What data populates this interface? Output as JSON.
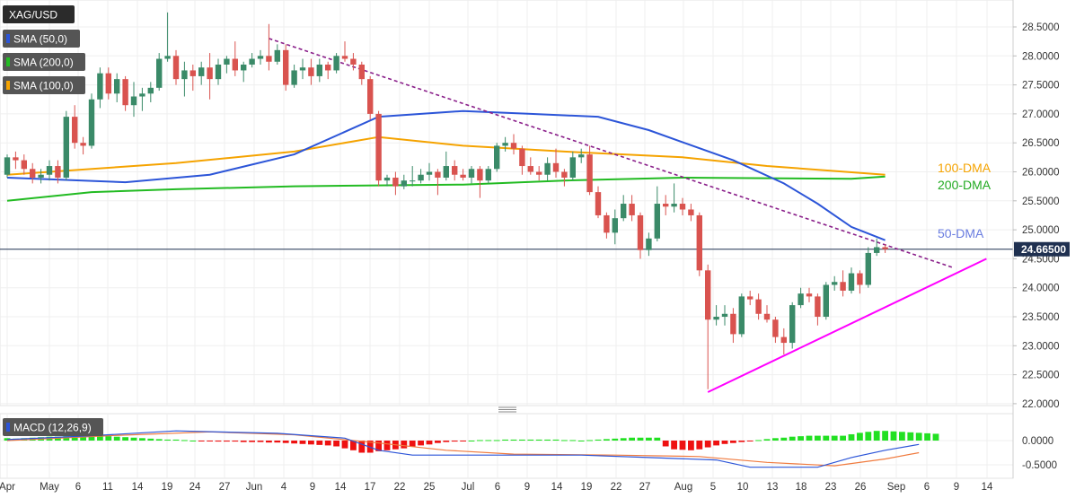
{
  "chart_data": [
    {
      "type": "candlestick",
      "symbol_label": "XAG/USD",
      "indicators": [
        {
          "label": "SMA (50,0)",
          "color": "#2c55d8",
          "end_label": "50-DMA"
        },
        {
          "label": "SMA (200,0)",
          "color": "#22bb22",
          "end_label": "200-DMA"
        },
        {
          "label": "SMA (100,0)",
          "color": "#f5a300",
          "end_label": "100-DMA"
        }
      ],
      "last_price_label": "24.66500",
      "last_price": 24.665,
      "ylim": [
        22.0,
        28.75
      ],
      "y_ticks": [
        "22.0000",
        "22.5000",
        "23.0000",
        "23.5000",
        "24.0000",
        "24.5000",
        "25.0000",
        "25.5000",
        "26.0000",
        "26.5000",
        "27.0000",
        "27.5000",
        "28.0000",
        "28.5000"
      ],
      "x_ticks": [
        "Apr",
        "May",
        "6",
        "11",
        "14",
        "19",
        "24",
        "27",
        "Jun",
        "4",
        "9",
        "14",
        "17",
        "22",
        "25",
        "Jul",
        "6",
        "9",
        "14",
        "19",
        "22",
        "27",
        "Aug",
        "5",
        "10",
        "13",
        "18",
        "23",
        "26",
        "Sep",
        "6",
        "9",
        "14"
      ],
      "candles": [
        [
          25.95,
          26.25,
          26.3,
          25.9
        ],
        [
          26.25,
          26.2,
          26.35,
          26.05
        ],
        [
          26.2,
          26.05,
          26.3,
          25.95
        ],
        [
          26.05,
          25.9,
          26.15,
          25.8
        ],
        [
          25.9,
          25.95,
          26.05,
          25.8
        ],
        [
          25.95,
          26.1,
          26.2,
          25.85
        ],
        [
          26.1,
          25.9,
          26.2,
          25.8
        ],
        [
          25.9,
          26.95,
          27.05,
          25.85
        ],
        [
          26.95,
          26.5,
          27.15,
          26.4
        ],
        [
          26.5,
          26.45,
          26.6,
          26.3
        ],
        [
          26.45,
          27.25,
          27.35,
          26.4
        ],
        [
          27.25,
          27.7,
          27.8,
          27.1
        ],
        [
          27.7,
          27.35,
          27.8,
          27.25
        ],
        [
          27.35,
          27.6,
          27.7,
          27.2
        ],
        [
          27.6,
          27.15,
          27.65,
          27.05
        ],
        [
          27.15,
          27.3,
          27.55,
          26.95
        ],
        [
          27.3,
          27.35,
          27.45,
          27.05
        ],
        [
          27.35,
          27.45,
          27.55,
          27.2
        ],
        [
          27.45,
          27.95,
          28.05,
          27.4
        ],
        [
          27.95,
          28.0,
          28.75,
          27.9
        ],
        [
          28.0,
          27.6,
          28.1,
          27.5
        ],
        [
          27.6,
          27.75,
          27.9,
          27.3
        ],
        [
          27.75,
          27.65,
          27.85,
          27.4
        ],
        [
          27.65,
          27.8,
          27.9,
          27.5
        ],
        [
          27.8,
          27.6,
          28.05,
          27.25
        ],
        [
          27.6,
          27.85,
          27.95,
          27.5
        ],
        [
          27.85,
          27.95,
          28.0,
          27.7
        ],
        [
          27.95,
          27.75,
          28.25,
          27.65
        ],
        [
          27.75,
          27.85,
          27.9,
          27.55
        ],
        [
          27.85,
          27.95,
          28.05,
          27.8
        ],
        [
          27.95,
          28.0,
          28.1,
          27.85
        ],
        [
          28.0,
          27.9,
          28.55,
          27.75
        ],
        [
          27.9,
          28.1,
          28.2,
          27.85
        ],
        [
          28.1,
          27.5,
          28.2,
          27.4
        ],
        [
          27.5,
          27.75,
          27.85,
          27.45
        ],
        [
          27.75,
          27.8,
          27.95,
          27.6
        ],
        [
          27.8,
          27.65,
          27.95,
          27.5
        ],
        [
          27.65,
          27.85,
          27.95,
          27.55
        ],
        [
          27.85,
          27.75,
          27.9,
          27.6
        ],
        [
          27.75,
          28.0,
          28.05,
          27.7
        ],
        [
          28.0,
          27.95,
          28.25,
          27.9
        ],
        [
          27.95,
          27.85,
          28.05,
          27.75
        ],
        [
          27.85,
          27.6,
          27.9,
          27.5
        ],
        [
          27.6,
          27.0,
          27.65,
          26.9
        ],
        [
          27.0,
          25.85,
          27.05,
          25.75
        ],
        [
          25.85,
          25.9,
          25.95,
          25.75
        ],
        [
          25.9,
          25.75,
          26.0,
          25.6
        ],
        [
          25.75,
          25.85,
          25.95,
          25.7
        ],
        [
          25.85,
          25.85,
          26.1,
          25.75
        ],
        [
          25.85,
          25.95,
          26.05,
          25.8
        ],
        [
          25.95,
          26.0,
          26.15,
          25.85
        ],
        [
          26.0,
          25.9,
          26.05,
          25.6
        ],
        [
          25.9,
          26.1,
          26.35,
          25.85
        ],
        [
          26.1,
          25.95,
          26.2,
          25.85
        ],
        [
          25.95,
          25.9,
          26.05,
          25.85
        ],
        [
          25.9,
          26.05,
          26.1,
          25.8
        ],
        [
          26.05,
          25.85,
          26.1,
          25.55
        ],
        [
          25.85,
          26.05,
          26.1,
          25.8
        ],
        [
          26.05,
          26.45,
          26.5,
          26.0
        ],
        [
          26.45,
          26.5,
          26.6,
          26.35
        ],
        [
          26.5,
          26.4,
          26.65,
          26.3
        ],
        [
          26.4,
          26.1,
          26.45,
          25.95
        ],
        [
          26.1,
          26.0,
          26.25,
          25.95
        ],
        [
          26.0,
          25.95,
          26.1,
          25.85
        ],
        [
          25.95,
          26.15,
          26.25,
          25.85
        ],
        [
          26.15,
          26.0,
          26.4,
          25.9
        ],
        [
          26.0,
          25.9,
          26.05,
          25.75
        ],
        [
          25.9,
          26.25,
          26.35,
          25.85
        ],
        [
          26.25,
          26.3,
          26.4,
          26.15
        ],
        [
          26.3,
          25.65,
          26.45,
          25.6
        ],
        [
          25.65,
          25.25,
          25.75,
          25.2
        ],
        [
          25.25,
          24.95,
          25.3,
          24.85
        ],
        [
          24.95,
          25.2,
          25.35,
          24.75
        ],
        [
          25.2,
          25.45,
          25.6,
          25.15
        ],
        [
          25.45,
          25.25,
          25.6,
          25.15
        ],
        [
          25.25,
          24.65,
          25.3,
          24.5
        ],
        [
          24.65,
          24.85,
          24.95,
          24.55
        ],
        [
          24.85,
          25.45,
          25.75,
          24.8
        ],
        [
          25.45,
          25.4,
          25.6,
          25.25
        ],
        [
          25.4,
          25.45,
          25.8,
          25.3
        ],
        [
          25.45,
          25.35,
          25.55,
          25.25
        ],
        [
          25.35,
          25.25,
          25.45,
          25.15
        ],
        [
          25.25,
          24.3,
          25.3,
          24.2
        ],
        [
          24.3,
          23.45,
          24.4,
          22.25
        ],
        [
          23.45,
          23.5,
          23.7,
          23.35
        ],
        [
          23.5,
          23.55,
          23.7,
          23.35
        ],
        [
          23.55,
          23.2,
          23.65,
          23.05
        ],
        [
          23.2,
          23.85,
          23.9,
          23.15
        ],
        [
          23.85,
          23.8,
          23.95,
          23.7
        ],
        [
          23.8,
          23.55,
          23.9,
          23.45
        ],
        [
          23.55,
          23.45,
          23.7,
          23.4
        ],
        [
          23.45,
          23.15,
          23.5,
          23.05
        ],
        [
          23.15,
          23.05,
          23.3,
          22.85
        ],
        [
          23.05,
          23.7,
          23.75,
          22.95
        ],
        [
          23.7,
          23.9,
          24.0,
          23.65
        ],
        [
          23.9,
          23.85,
          24.0,
          23.75
        ],
        [
          23.85,
          23.5,
          23.9,
          23.35
        ],
        [
          23.5,
          24.05,
          24.1,
          23.45
        ],
        [
          24.05,
          24.1,
          24.2,
          23.95
        ],
        [
          24.1,
          23.95,
          24.3,
          23.85
        ],
        [
          23.95,
          24.25,
          24.35,
          23.9
        ],
        [
          24.25,
          24.05,
          24.3,
          23.9
        ],
        [
          24.05,
          24.6,
          24.7,
          24.0
        ],
        [
          24.6,
          24.7,
          24.85,
          24.55
        ],
        [
          24.7,
          24.665,
          24.75,
          24.6
        ]
      ],
      "sma50": [
        [
          0,
          25.9
        ],
        [
          14,
          25.82
        ],
        [
          24,
          25.95
        ],
        [
          34,
          26.3
        ],
        [
          44,
          26.95
        ],
        [
          54,
          27.05
        ],
        [
          62,
          27.0
        ],
        [
          70,
          26.95
        ],
        [
          76,
          26.72
        ],
        [
          86,
          26.2
        ],
        [
          92,
          25.8
        ],
        [
          96,
          25.45
        ],
        [
          100,
          25.05
        ],
        [
          104,
          24.82
        ]
      ],
      "sma100": [
        [
          0,
          25.95
        ],
        [
          20,
          26.15
        ],
        [
          34,
          26.35
        ],
        [
          44,
          26.6
        ],
        [
          54,
          26.45
        ],
        [
          66,
          26.35
        ],
        [
          80,
          26.25
        ],
        [
          90,
          26.1
        ],
        [
          104,
          25.95
        ]
      ],
      "sma200": [
        [
          0,
          25.5
        ],
        [
          10,
          25.65
        ],
        [
          20,
          25.7
        ],
        [
          34,
          25.75
        ],
        [
          54,
          25.78
        ],
        [
          66,
          25.85
        ],
        [
          80,
          25.9
        ],
        [
          100,
          25.88
        ],
        [
          104,
          25.92
        ]
      ],
      "trendline_resistance": {
        "from": [
          31,
          28.3
        ],
        "to": [
          112,
          24.35
        ],
        "style": "dashed",
        "color": "#8a1f8a"
      },
      "trendline_support": {
        "from": [
          83,
          22.2
        ],
        "to": [
          116,
          24.5
        ],
        "style": "solid",
        "color": "#ff00ff"
      },
      "colors": {
        "up": "#3a8a68",
        "down": "#d9534f"
      }
    },
    {
      "type": "macd",
      "label": "MACD (12,26,9)",
      "ylim": [
        -0.62,
        0.22
      ],
      "y_ticks": [
        "0.0000",
        "-0.5000"
      ],
      "macd_line": [
        [
          0,
          0.02
        ],
        [
          10,
          0.1
        ],
        [
          20,
          0.2
        ],
        [
          32,
          0.15
        ],
        [
          40,
          0.05
        ],
        [
          44,
          -0.2
        ],
        [
          48,
          -0.3
        ],
        [
          56,
          -0.3
        ],
        [
          68,
          -0.3
        ],
        [
          76,
          -0.35
        ],
        [
          84,
          -0.4
        ],
        [
          88,
          -0.55
        ],
        [
          96,
          -0.55
        ],
        [
          100,
          -0.35
        ],
        [
          104,
          -0.2
        ],
        [
          108,
          -0.08
        ]
      ],
      "signal_line": [
        [
          0,
          0.0
        ],
        [
          12,
          0.1
        ],
        [
          24,
          0.18
        ],
        [
          34,
          0.12
        ],
        [
          44,
          -0.05
        ],
        [
          52,
          -0.2
        ],
        [
          60,
          -0.28
        ],
        [
          72,
          -0.3
        ],
        [
          82,
          -0.33
        ],
        [
          90,
          -0.45
        ],
        [
          98,
          -0.52
        ],
        [
          104,
          -0.38
        ],
        [
          108,
          -0.25
        ]
      ],
      "histogram": [
        0.05,
        0.04,
        0.05,
        0.06,
        0.07,
        0.08,
        0.08,
        0.09,
        0.1,
        0.1,
        0.1,
        0.1,
        0.09,
        0.08,
        0.07,
        0.06,
        0.05,
        0.04,
        0.03,
        0.02,
        0.02,
        0.01,
        0.0,
        -0.01,
        -0.01,
        -0.02,
        -0.02,
        -0.02,
        -0.03,
        -0.03,
        -0.03,
        -0.04,
        -0.04,
        -0.05,
        -0.06,
        -0.07,
        -0.08,
        -0.09,
        -0.1,
        -0.12,
        -0.16,
        -0.2,
        -0.25,
        -0.25,
        -0.22,
        -0.2,
        -0.18,
        -0.16,
        -0.12,
        -0.1,
        -0.08,
        -0.05,
        -0.03,
        -0.02,
        -0.01,
        0.0,
        0.01,
        0.01,
        0.01,
        0.02,
        0.02,
        0.02,
        0.02,
        0.02,
        0.02,
        0.02,
        0.01,
        0.01,
        0.0,
        0.01,
        0.02,
        0.03,
        0.04,
        0.05,
        0.06,
        0.06,
        0.06,
        0.06,
        -0.12,
        -0.18,
        -0.19,
        -0.2,
        -0.18,
        -0.14,
        -0.1,
        -0.07,
        -0.05,
        -0.03,
        -0.01,
        0.01,
        0.03,
        0.05,
        0.06,
        0.08,
        0.09,
        0.1,
        0.1,
        0.1,
        0.1,
        0.1,
        0.13,
        0.16,
        0.18,
        0.2,
        0.2,
        0.19,
        0.18,
        0.17,
        0.16,
        0.15,
        0.14
      ],
      "colors": {
        "macd": "#2c55d8",
        "signal": "#f07b3f",
        "hist_up": "#22e022",
        "hist_down": "#ee1111"
      }
    }
  ]
}
